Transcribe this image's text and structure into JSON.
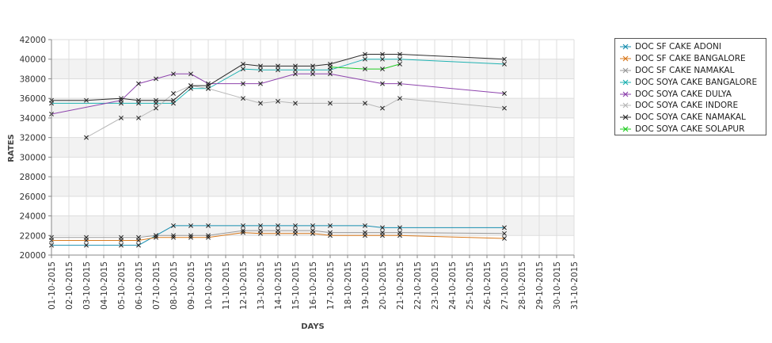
{
  "chart_data": {
    "type": "line",
    "title": "",
    "xlabel": "DAYS",
    "ylabel": "RATES",
    "ylim": [
      20000,
      42000
    ],
    "yticks": [
      20000,
      22000,
      24000,
      26000,
      28000,
      30000,
      32000,
      34000,
      36000,
      38000,
      40000,
      42000
    ],
    "grid": true,
    "legend_position": "right",
    "categories": [
      "01-10-2015",
      "02-10-2015",
      "03-10-2015",
      "04-10-2015",
      "05-10-2015",
      "06-10-2015",
      "07-10-2015",
      "08-10-2015",
      "09-10-2015",
      "10-10-2015",
      "11-10-2015",
      "12-10-2015",
      "13-10-2015",
      "14-10-2015",
      "15-10-2015",
      "16-10-2015",
      "17-10-2015",
      "18-10-2015",
      "19-10-2015",
      "20-10-2015",
      "21-10-2015",
      "22-10-2015",
      "23-10-2015",
      "24-10-2015",
      "25-10-2015",
      "26-10-2015",
      "27-10-2015",
      "28-10-2015",
      "29-10-2015",
      "30-10-2015",
      "31-10-2015"
    ],
    "series": [
      {
        "name": "DOC SF CAKE ADONI",
        "color": "#1a8fb0",
        "points": [
          [
            1,
            21000
          ],
          [
            3,
            21000
          ],
          [
            5,
            21000
          ],
          [
            6,
            21000
          ],
          [
            7,
            22000
          ],
          [
            8,
            23000
          ],
          [
            9,
            23000
          ],
          [
            10,
            23000
          ],
          [
            12,
            23000
          ],
          [
            13,
            23000
          ],
          [
            14,
            23000
          ],
          [
            15,
            23000
          ],
          [
            16,
            23000
          ],
          [
            17,
            23000
          ],
          [
            19,
            23000
          ],
          [
            20,
            22800
          ],
          [
            21,
            22800
          ],
          [
            27,
            22800
          ]
        ]
      },
      {
        "name": "DOC SF CAKE BANGALORE",
        "color": "#d97a1e",
        "points": [
          [
            1,
            21500
          ],
          [
            3,
            21500
          ],
          [
            5,
            21500
          ],
          [
            6,
            21500
          ],
          [
            7,
            21800
          ],
          [
            8,
            21800
          ],
          [
            9,
            21800
          ],
          [
            10,
            21800
          ],
          [
            12,
            22300
          ],
          [
            13,
            22200
          ],
          [
            14,
            22200
          ],
          [
            15,
            22200
          ],
          [
            16,
            22200
          ],
          [
            17,
            22000
          ],
          [
            19,
            22000
          ],
          [
            20,
            22000
          ],
          [
            21,
            22000
          ],
          [
            27,
            21700
          ]
        ]
      },
      {
        "name": "DOC SF CAKE NAMAKAL",
        "color": "#9a9a9a",
        "points": [
          [
            1,
            21800
          ],
          [
            3,
            21800
          ],
          [
            5,
            21800
          ],
          [
            6,
            21800
          ],
          [
            7,
            22000
          ],
          [
            8,
            22000
          ],
          [
            9,
            22000
          ],
          [
            10,
            22000
          ],
          [
            12,
            22500
          ],
          [
            13,
            22500
          ],
          [
            14,
            22500
          ],
          [
            15,
            22500
          ],
          [
            16,
            22500
          ],
          [
            17,
            22300
          ],
          [
            19,
            22300
          ],
          [
            20,
            22300
          ],
          [
            21,
            22300
          ],
          [
            27,
            22200
          ]
        ]
      },
      {
        "name": "DOC SOYA CAKE BANGALORE",
        "color": "#20b2b2",
        "points": [
          [
            1,
            35500
          ],
          [
            5,
            35500
          ],
          [
            6,
            35500
          ],
          [
            7,
            35500
          ],
          [
            8,
            35500
          ],
          [
            9,
            37000
          ],
          [
            10,
            37000
          ],
          [
            12,
            39000
          ],
          [
            13,
            38900
          ],
          [
            14,
            38900
          ],
          [
            15,
            38900
          ],
          [
            16,
            38900
          ],
          [
            17,
            38900
          ],
          [
            19,
            40000
          ],
          [
            20,
            40000
          ],
          [
            21,
            40000
          ],
          [
            27,
            39500
          ]
        ]
      },
      {
        "name": "DOC SOYA CAKE DULYA",
        "color": "#8e44ad",
        "points": [
          [
            1,
            34400
          ],
          [
            5,
            35800
          ],
          [
            6,
            37500
          ],
          [
            7,
            38000
          ],
          [
            8,
            38500
          ],
          [
            9,
            38500
          ],
          [
            10,
            37500
          ],
          [
            12,
            37500
          ],
          [
            13,
            37500
          ],
          [
            15,
            38500
          ],
          [
            16,
            38500
          ],
          [
            17,
            38500
          ],
          [
            20,
            37500
          ],
          [
            21,
            37500
          ],
          [
            27,
            36500
          ]
        ]
      },
      {
        "name": "DOC SOYA CAKE INDORE",
        "color": "#b8b8b8",
        "points": [
          [
            3,
            32000
          ],
          [
            5,
            34000
          ],
          [
            6,
            34000
          ],
          [
            7,
            35000
          ],
          [
            8,
            36500
          ],
          [
            9,
            37300
          ],
          [
            10,
            37000
          ],
          [
            12,
            36000
          ],
          [
            13,
            35500
          ],
          [
            14,
            35700
          ],
          [
            15,
            35500
          ],
          [
            17,
            35500
          ],
          [
            19,
            35500
          ],
          [
            20,
            35000
          ],
          [
            21,
            36000
          ],
          [
            27,
            35000
          ]
        ]
      },
      {
        "name": "DOC SOYA CAKE NAMAKAL",
        "color": "#2d2d2d",
        "points": [
          [
            1,
            35800
          ],
          [
            3,
            35800
          ],
          [
            5,
            36000
          ],
          [
            6,
            35800
          ],
          [
            7,
            35800
          ],
          [
            8,
            35800
          ],
          [
            9,
            37300
          ],
          [
            10,
            37300
          ],
          [
            12,
            39500
          ],
          [
            13,
            39300
          ],
          [
            14,
            39300
          ],
          [
            15,
            39300
          ],
          [
            16,
            39300
          ],
          [
            17,
            39500
          ],
          [
            19,
            40500
          ],
          [
            20,
            40500
          ],
          [
            21,
            40500
          ],
          [
            27,
            40000
          ]
        ]
      },
      {
        "name": "DOC SOYA CAKE SOLAPUR",
        "color": "#22cc22",
        "points": [
          [
            17,
            39200
          ],
          [
            19,
            39000
          ],
          [
            20,
            39000
          ],
          [
            21,
            39500
          ]
        ]
      }
    ]
  }
}
